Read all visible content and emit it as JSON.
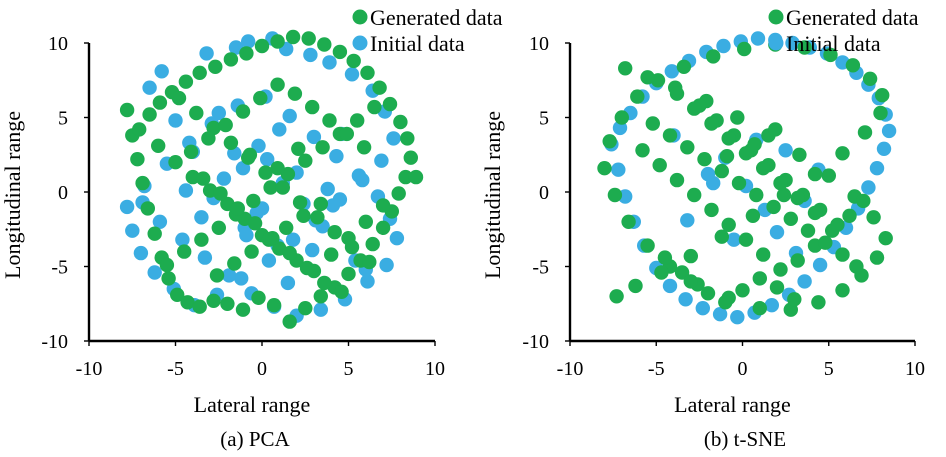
{
  "colors": {
    "generated": "#1dac4f",
    "initial": "#3aade2",
    "axis": "#000000"
  },
  "chart_data": [
    {
      "type": "scatter",
      "caption": "(a) PCA",
      "xlabel": "Lateral range",
      "ylabel": "Longitudinal range",
      "xlim": [
        -10,
        10
      ],
      "ylim": [
        -10,
        10
      ],
      "xticks": [
        -10,
        -5,
        0,
        5,
        10
      ],
      "yticks": [
        -10,
        -5,
        0,
        5,
        10
      ],
      "xtick_labels": [
        "-10",
        "-5",
        "0",
        "5",
        "10"
      ],
      "ytick_labels": [
        "-10",
        "-5",
        "0",
        "5",
        "10"
      ],
      "grid": false,
      "legend_position": "top-right",
      "series": [
        {
          "name": "Initial data",
          "color": "#3aade2",
          "x": [
            -6.5,
            -5.8,
            -3.2,
            -1.5,
            -0.8,
            0.6,
            1.4,
            2.8,
            3.9,
            5.2,
            6.4,
            7.1,
            7.6,
            6.9,
            5.8,
            4.5,
            3.1,
            1.8,
            0.4,
            -1.2,
            -2.6,
            -3.9,
            -5.1,
            -6.2,
            -7.0,
            -7.5,
            -7.8,
            -6.8,
            -5.5,
            -4.2,
            -2.9,
            -1.4,
            0.2,
            1.6,
            3.0,
            4.3,
            5.6,
            6.7,
            7.4,
            7.8,
            7.2,
            6.1,
            4.8,
            3.4,
            2.0,
            0.7,
            -0.6,
            -1.9,
            -3.3,
            -4.6,
            -5.9,
            -6.9,
            -2.2,
            -1.1,
            0.3,
            1.2,
            2.4,
            3.5,
            -0.3,
            -2.8,
            -4.0,
            4.6,
            5.4,
            0.9,
            -0.9,
            2.0,
            -3.5,
            3.8,
            -5.0,
            6.0,
            -0.2,
            1.5,
            -1.6,
            2.9,
            -2.5,
            0.0,
            1.0,
            -4.4,
            4.1,
            -1.0
          ],
          "y": [
            7.0,
            8.1,
            9.3,
            9.7,
            10.1,
            10.3,
            9.6,
            9.2,
            8.7,
            7.9,
            6.8,
            5.4,
            3.6,
            2.1,
            0.8,
            -0.5,
            -1.9,
            -3.2,
            -4.6,
            -5.8,
            -6.9,
            -7.6,
            -6.5,
            -5.4,
            -4.1,
            -2.6,
            -1.0,
            0.4,
            1.9,
            3.3,
            4.6,
            5.8,
            6.4,
            5.1,
            3.7,
            2.4,
            1.1,
            -0.3,
            -1.8,
            -3.1,
            -4.9,
            -6.0,
            -7.2,
            -7.9,
            -8.3,
            -7.7,
            -6.8,
            -5.6,
            -4.4,
            -3.2,
            -2.0,
            -0.7,
            0.9,
            1.6,
            2.2,
            0.6,
            -0.8,
            -2.3,
            -1.4,
            -0.4,
            2.7,
            3.9,
            -4.6,
            -3.6,
            -2.9,
            1.3,
            -1.7,
            0.2,
            4.8,
            -5.2,
            3.1,
            -6.1,
            2.6,
            -3.9,
            5.3,
            -1.1,
            4.2,
            0.1,
            -0.9,
            -2.4
          ]
        },
        {
          "name": "Generated data",
          "color": "#1dac4f",
          "x": [
            -7.8,
            -7.5,
            -7.2,
            -6.9,
            -6.6,
            -6.2,
            -5.8,
            -5.4,
            -4.9,
            -4.3,
            -3.6,
            -2.8,
            -2.0,
            -1.1,
            -0.2,
            0.7,
            1.6,
            2.5,
            3.4,
            4.2,
            5.0,
            5.7,
            6.4,
            7.0,
            7.5,
            7.9,
            8.3,
            8.6,
            8.9,
            8.4,
            8.0,
            7.4,
            6.8,
            6.1,
            5.3,
            4.5,
            3.6,
            2.7,
            1.8,
            0.9,
            0.0,
            -0.9,
            -1.8,
            -2.7,
            -3.6,
            -4.4,
            -5.2,
            -5.9,
            -6.5,
            -7.1,
            -6.0,
            -5.0,
            -4.0,
            -3.0,
            -2.0,
            -1.0,
            0.0,
            1.0,
            2.0,
            3.0,
            4.0,
            5.0,
            6.0,
            7.0,
            -5.5,
            -4.5,
            -3.5,
            -2.5,
            -1.5,
            -0.5,
            0.5,
            1.5,
            2.5,
            3.5,
            4.5,
            5.5,
            6.5,
            -4.8,
            -3.8,
            -2.8,
            -1.8,
            -0.8,
            0.2,
            1.2,
            2.2,
            3.2,
            4.2,
            5.2,
            6.2,
            -4.1,
            -3.1,
            -2.1,
            -1.1,
            -0.1,
            0.9,
            1.9,
            2.9,
            3.9,
            4.9,
            5.9,
            -3.4,
            -2.4,
            -1.4,
            -0.4,
            0.6,
            1.6,
            2.6,
            3.6,
            4.6,
            -2.6,
            -1.6,
            -0.6,
            0.4,
            1.4,
            2.4,
            3.4,
            0.9,
            -0.7,
            2.1
          ],
          "y": [
            5.5,
            3.8,
            2.2,
            0.6,
            -1.1,
            -2.8,
            -4.4,
            -5.8,
            -6.9,
            -7.4,
            -7.7,
            -7.3,
            -7.5,
            -7.9,
            -7.1,
            -7.6,
            -8.7,
            -7.8,
            -7.0,
            -6.4,
            -5.5,
            -4.6,
            -3.5,
            -2.4,
            -1.3,
            -0.1,
            1.0,
            2.3,
            1.0,
            3.6,
            4.7,
            5.9,
            7.0,
            8.0,
            8.8,
            9.4,
            9.9,
            10.3,
            10.4,
            10.1,
            9.8,
            9.3,
            8.9,
            8.4,
            8.0,
            7.4,
            6.7,
            6.0,
            5.2,
            4.2,
            3.1,
            2.0,
            1.0,
            0.1,
            -0.8,
            -1.8,
            -2.9,
            -3.8,
            -4.6,
            -5.3,
            -4.2,
            -3.1,
            -2.0,
            -0.9,
            -4.9,
            -4.0,
            -3.2,
            -2.4,
            -1.5,
            -0.6,
            0.3,
            1.2,
            2.1,
            3.0,
            3.9,
            4.8,
            5.7,
            6.3,
            5.3,
            4.3,
            3.3,
            2.3,
            1.3,
            0.3,
            -0.7,
            -1.7,
            -2.7,
            -3.7,
            -4.7,
            2.7,
            3.6,
            4.5,
            5.4,
            6.3,
            7.2,
            6.6,
            5.7,
            4.8,
            3.9,
            3.0,
            0.9,
            -0.1,
            -1.1,
            -2.1,
            -3.1,
            -4.1,
            -5.1,
            -6.1,
            -6.7,
            -5.6,
            -4.8,
            -4.0,
            -3.2,
            -2.4,
            -1.6,
            -0.8,
            1.6,
            2.5,
            2.9
          ]
        }
      ]
    },
    {
      "type": "scatter",
      "caption": "(b) t-SNE",
      "xlabel": "Lateral range",
      "ylabel": "Longitudinal range",
      "xlim": [
        -10,
        10
      ],
      "ylim": [
        -10,
        10
      ],
      "xticks": [
        -10,
        -5,
        0,
        5,
        10
      ],
      "yticks": [
        -10,
        -5,
        0,
        5,
        10
      ],
      "xtick_labels": [
        "-10",
        "-5",
        "0",
        "5",
        "10"
      ],
      "ytick_labels": [
        "-10",
        "-5",
        "0",
        "5",
        "10"
      ],
      "grid": false,
      "legend_position": "top-right",
      "series": [
        {
          "name": "Initial data",
          "color": "#3aade2",
          "x": [
            -7.6,
            -7.2,
            -6.8,
            -6.3,
            -5.7,
            -5.0,
            -4.2,
            -3.3,
            -2.3,
            -1.3,
            -0.3,
            0.7,
            1.7,
            2.7,
            3.6,
            4.5,
            5.3,
            6.0,
            6.7,
            7.3,
            7.8,
            8.2,
            8.5,
            8.3,
            7.9,
            7.3,
            6.6,
            5.8,
            4.9,
            3.9,
            2.9,
            1.9,
            0.9,
            -0.1,
            -1.1,
            -2.1,
            -3.1,
            -4.1,
            -5.0,
            -5.8,
            -6.5,
            -7.1,
            -2.0,
            -1.0,
            0.2,
            1.3,
            2.5,
            3.6,
            -3.2,
            4.4,
            -0.5,
            0.8,
            2.0,
            -1.7,
            3.1,
            -4.0
          ],
          "y": [
            3.2,
            1.5,
            -0.3,
            -2.0,
            -3.6,
            -5.1,
            -6.3,
            -7.2,
            -7.8,
            -8.2,
            -8.4,
            -8.1,
            -7.6,
            -6.9,
            -6.0,
            -4.9,
            -3.7,
            -2.4,
            -1.1,
            0.3,
            1.6,
            2.9,
            4.1,
            5.2,
            6.3,
            7.2,
            8.0,
            8.7,
            9.3,
            9.7,
            10.0,
            10.2,
            10.3,
            10.1,
            9.8,
            9.4,
            8.8,
            8.1,
            7.3,
            6.4,
            5.3,
            4.3,
            1.2,
            2.3,
            0.4,
            -1.2,
            2.8,
            -0.6,
            -1.9,
            1.5,
            -3.2,
            3.5,
            -2.7,
            0.6,
            -4.1,
            3.8
          ]
        },
        {
          "name": "Generated data",
          "color": "#1dac4f",
          "x": [
            -8.0,
            -7.7,
            -7.4,
            -7.0,
            -6.6,
            -6.1,
            -5.5,
            -4.9,
            -4.2,
            -3.4,
            -2.6,
            -1.7,
            -0.8,
            0.1,
            1.0,
            1.9,
            2.8,
            3.6,
            4.4,
            5.1,
            5.8,
            6.4,
            6.9,
            7.4,
            7.8,
            8.1,
            8.3,
            8.0,
            7.6,
            7.1,
            6.5,
            5.8,
            5.0,
            4.2,
            3.3,
            2.4,
            1.5,
            0.6,
            -0.3,
            -1.2,
            -2.1,
            -3.0,
            -3.9,
            -4.7,
            -5.5,
            -6.2,
            -6.8,
            -7.3,
            -5.8,
            -4.8,
            -3.8,
            -2.8,
            -1.8,
            -0.8,
            0.2,
            1.2,
            2.2,
            3.2,
            4.2,
            5.2,
            6.2,
            7.0,
            -5.2,
            -4.2,
            -3.2,
            -2.2,
            -1.2,
            -0.2,
            0.8,
            1.8,
            2.8,
            3.8,
            4.8,
            5.8,
            6.6,
            -4.5,
            -3.5,
            -2.5,
            -1.5,
            -0.5,
            0.5,
            1.5,
            2.5,
            3.5,
            4.5,
            5.5,
            -3.8,
            -2.8,
            -1.8,
            -0.8,
            0.2,
            1.2,
            2.2,
            3.2,
            4.2,
            -3.0,
            -2.0,
            -1.0,
            0.0,
            1.0,
            2.0,
            3.0,
            0.7,
            -0.9,
            1.9
          ],
          "y": [
            1.6,
            3.4,
            -0.2,
            5.0,
            -2.0,
            6.4,
            -3.6,
            7.5,
            -5.0,
            8.4,
            -6.2,
            9.1,
            -7.1,
            9.6,
            -7.8,
            9.9,
            -7.9,
            9.7,
            -7.4,
            9.2,
            -6.6,
            8.5,
            -5.6,
            7.6,
            -4.4,
            6.5,
            -3.1,
            5.3,
            -1.7,
            4.0,
            -0.3,
            2.6,
            1.1,
            1.2,
            2.5,
            -0.2,
            3.8,
            -1.6,
            5.0,
            -3.0,
            6.1,
            -4.3,
            7.0,
            -5.4,
            7.7,
            -6.3,
            8.3,
            -7.0,
            2.8,
            1.8,
            0.8,
            -0.2,
            -1.2,
            -2.2,
            -3.2,
            -4.2,
            -5.2,
            -4.6,
            -3.6,
            -2.6,
            -1.6,
            -0.6,
            4.6,
            3.8,
            3.0,
            2.2,
            1.4,
            0.6,
            -0.2,
            -1.0,
            -1.8,
            -2.6,
            -3.4,
            -4.2,
            -5.0,
            -4.4,
            -5.4,
            5.8,
            4.8,
            3.8,
            2.8,
            1.8,
            0.8,
            -0.2,
            -1.2,
            -2.2,
            6.6,
            5.6,
            4.6,
            3.6,
            2.6,
            1.6,
            0.6,
            -0.4,
            -1.4,
            -6.0,
            -6.8,
            -7.4,
            -6.6,
            -5.8,
            -6.4,
            -7.2,
            3.2,
            2.4,
            4.2
          ]
        }
      ]
    }
  ]
}
